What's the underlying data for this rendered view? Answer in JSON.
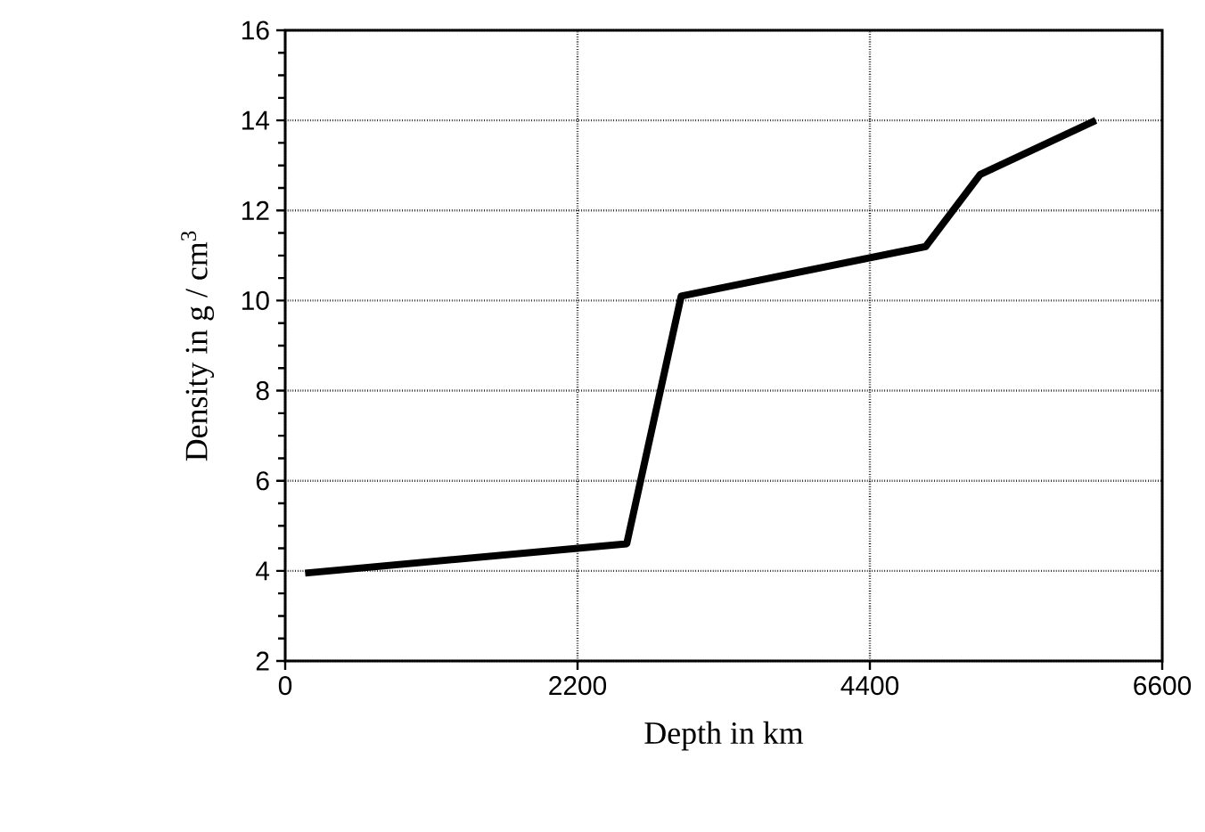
{
  "chart_data": {
    "type": "line",
    "xlabel": "Depth in km",
    "ylabel": "Density in g / cm$^{3}$",
    "x": [
      150,
      2570,
      2980,
      4820,
      5230,
      6100
    ],
    "values": [
      3.95,
      4.6,
      10.1,
      11.2,
      12.8,
      14.0
    ],
    "color": "#000000",
    "xlim": [
      0,
      6600
    ],
    "xticks": [
      0,
      2200,
      4400,
      6600
    ],
    "ylim": [
      2,
      16
    ],
    "yticks": [
      2,
      4,
      6,
      8,
      10,
      12,
      14,
      16
    ],
    "grid": true,
    "line_style": "solid",
    "marker": "none"
  }
}
